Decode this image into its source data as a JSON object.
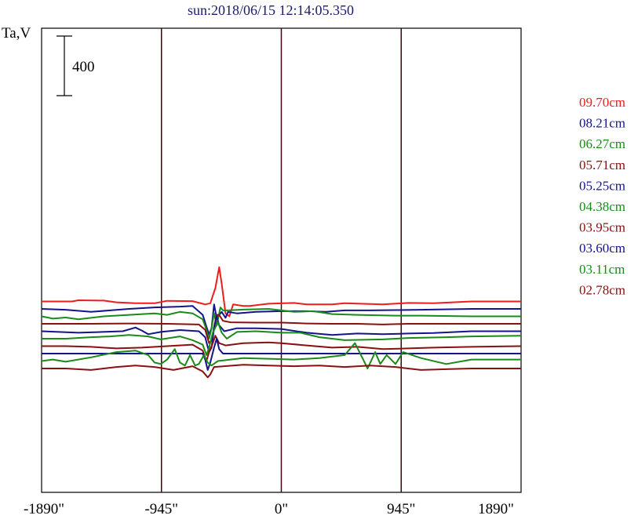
{
  "chart_data": {
    "type": "line",
    "title": "sun:2018/06/15 12:14:05.350",
    "ylabel": "Ta,V",
    "xlabel": "",
    "xlim": [
      -1890,
      1890
    ],
    "x_ticks": [
      {
        "value": -1890,
        "label": "-1890\""
      },
      {
        "value": -945,
        "label": "-945\""
      },
      {
        "value": 0,
        "label": "0\""
      },
      {
        "value": 945,
        "label": "945\""
      },
      {
        "value": 1890,
        "label": "1890\""
      }
    ],
    "vertical_gridlines": [
      -945,
      0,
      945
    ],
    "scale_bar": {
      "value": 400,
      "label": "400"
    },
    "colors": {
      "red": "#ee1c1c",
      "navy": "#14148a",
      "green": "#1a8a1a",
      "maroon": "#8a1010",
      "frame": "#000000",
      "title": "#1a1a6e"
    },
    "series": [
      {
        "name": "09.70cm",
        "color": "#ee1c1c",
        "baseline": 350,
        "points": [
          [
            -1890,
            0
          ],
          [
            -1650,
            0
          ],
          [
            -1600,
            8
          ],
          [
            -1400,
            6
          ],
          [
            -1300,
            -6
          ],
          [
            -1150,
            -12
          ],
          [
            -1000,
            -12
          ],
          [
            -900,
            4
          ],
          [
            -700,
            2
          ],
          [
            -600,
            -20
          ],
          [
            -560,
            -12
          ],
          [
            -520,
            90
          ],
          [
            -490,
            230
          ],
          [
            -470,
            120
          ],
          [
            -440,
            -80
          ],
          [
            -410,
            -100
          ],
          [
            -380,
            -20
          ],
          [
            -300,
            -30
          ],
          [
            -250,
            -30
          ],
          [
            -100,
            -15
          ],
          [
            100,
            -10
          ],
          [
            200,
            -20
          ],
          [
            400,
            -20
          ],
          [
            500,
            -12
          ],
          [
            800,
            -20
          ],
          [
            1000,
            -10
          ],
          [
            1200,
            -12
          ],
          [
            1500,
            0
          ],
          [
            1890,
            0
          ]
        ]
      },
      {
        "name": "08.21cm",
        "color": "#14148a",
        "baseline": 300,
        "points": [
          [
            -1890,
            0
          ],
          [
            -1700,
            -6
          ],
          [
            -1500,
            -20
          ],
          [
            -1350,
            -10
          ],
          [
            -1200,
            0
          ],
          [
            -1000,
            10
          ],
          [
            -800,
            15
          ],
          [
            -700,
            20
          ],
          [
            -620,
            -40
          ],
          [
            -590,
            -120
          ],
          [
            -570,
            -170
          ],
          [
            -550,
            -130
          ],
          [
            -530,
            30
          ],
          [
            -510,
            -60
          ],
          [
            -470,
            -20
          ],
          [
            -440,
            -60
          ],
          [
            -420,
            -20
          ],
          [
            -350,
            -30
          ],
          [
            -200,
            -20
          ],
          [
            0,
            -15
          ],
          [
            200,
            -15
          ],
          [
            350,
            -20
          ],
          [
            500,
            -10
          ],
          [
            700,
            -10
          ],
          [
            900,
            -8
          ],
          [
            1100,
            -6
          ],
          [
            1500,
            0
          ],
          [
            1890,
            0
          ]
        ]
      },
      {
        "name": "06.27cm",
        "color": "#1a8a1a",
        "baseline": 250,
        "points": [
          [
            -1890,
            0
          ],
          [
            -1800,
            -15
          ],
          [
            -1700,
            -8
          ],
          [
            -1600,
            -20
          ],
          [
            -1400,
            0
          ],
          [
            -1200,
            10
          ],
          [
            -1000,
            20
          ],
          [
            -900,
            10
          ],
          [
            -800,
            30
          ],
          [
            -700,
            20
          ],
          [
            -620,
            -20
          ],
          [
            -590,
            -90
          ],
          [
            -570,
            -150
          ],
          [
            -550,
            -80
          ],
          [
            -530,
            20
          ],
          [
            -510,
            -60
          ],
          [
            -480,
            60
          ],
          [
            -460,
            40
          ],
          [
            -420,
            40
          ],
          [
            -300,
            45
          ],
          [
            -100,
            50
          ],
          [
            100,
            30
          ],
          [
            250,
            35
          ],
          [
            400,
            15
          ],
          [
            600,
            10
          ],
          [
            900,
            5
          ],
          [
            1100,
            5
          ],
          [
            1500,
            0
          ],
          [
            1890,
            0
          ]
        ]
      },
      {
        "name": "05.71cm",
        "color": "#8a1010",
        "baseline": 200,
        "points": [
          [
            -1890,
            0
          ],
          [
            -1500,
            0
          ],
          [
            -1200,
            2
          ],
          [
            -900,
            0
          ],
          [
            -650,
            -5
          ],
          [
            -600,
            -40
          ],
          [
            -570,
            -130
          ],
          [
            -550,
            -110
          ],
          [
            -530,
            -20
          ],
          [
            -510,
            60
          ],
          [
            -490,
            60
          ],
          [
            -460,
            20
          ],
          [
            -400,
            10
          ],
          [
            -200,
            8
          ],
          [
            0,
            8
          ],
          [
            200,
            2
          ],
          [
            400,
            0
          ],
          [
            600,
            0
          ],
          [
            800,
            -5
          ],
          [
            1000,
            0
          ],
          [
            1200,
            0
          ],
          [
            1500,
            0
          ],
          [
            1890,
            0
          ]
        ]
      },
      {
        "name": "05.25cm",
        "color": "#14148a",
        "baseline": 150,
        "points": [
          [
            -1890,
            0
          ],
          [
            -1600,
            -10
          ],
          [
            -1450,
            -6
          ],
          [
            -1250,
            0
          ],
          [
            -1150,
            25
          ],
          [
            -1100,
            5
          ],
          [
            -1050,
            -20
          ],
          [
            -950,
            -5
          ],
          [
            -800,
            8
          ],
          [
            -650,
            0
          ],
          [
            -600,
            -40
          ],
          [
            -570,
            -140
          ],
          [
            -550,
            -110
          ],
          [
            -530,
            20
          ],
          [
            -510,
            100
          ],
          [
            -490,
            40
          ],
          [
            -450,
            0
          ],
          [
            -350,
            20
          ],
          [
            -200,
            20
          ],
          [
            0,
            15
          ],
          [
            200,
            -10
          ],
          [
            400,
            -25
          ],
          [
            600,
            -15
          ],
          [
            800,
            -20
          ],
          [
            1000,
            -15
          ],
          [
            1200,
            -12
          ],
          [
            1500,
            0
          ],
          [
            1890,
            0
          ]
        ]
      },
      {
        "name": "04.38cm",
        "color": "#1a8a1a",
        "baseline": 100,
        "points": [
          [
            -1890,
            0
          ],
          [
            -1700,
            0
          ],
          [
            -1500,
            10
          ],
          [
            -1350,
            15
          ],
          [
            -1200,
            25
          ],
          [
            -1050,
            15
          ],
          [
            -950,
            -5
          ],
          [
            -800,
            15
          ],
          [
            -700,
            -10
          ],
          [
            -620,
            -40
          ],
          [
            -590,
            -110
          ],
          [
            -570,
            -60
          ],
          [
            -540,
            40
          ],
          [
            -500,
            110
          ],
          [
            -470,
            40
          ],
          [
            -430,
            0
          ],
          [
            -350,
            45
          ],
          [
            -200,
            50
          ],
          [
            0,
            40
          ],
          [
            150,
            40
          ],
          [
            300,
            10
          ],
          [
            500,
            -10
          ],
          [
            800,
            -5
          ],
          [
            1000,
            5
          ],
          [
            1300,
            10
          ],
          [
            1500,
            15
          ],
          [
            1890,
            20
          ]
        ]
      },
      {
        "name": "03.95cm",
        "color": "#8a1010",
        "baseline": 50,
        "points": [
          [
            -1890,
            0
          ],
          [
            -1700,
            0
          ],
          [
            -1500,
            -5
          ],
          [
            -1300,
            -15
          ],
          [
            -1100,
            -10
          ],
          [
            -900,
            0
          ],
          [
            -700,
            10
          ],
          [
            -620,
            -30
          ],
          [
            -590,
            -100
          ],
          [
            -570,
            -40
          ],
          [
            -540,
            20
          ],
          [
            -520,
            70
          ],
          [
            -490,
            20
          ],
          [
            -440,
            5
          ],
          [
            -300,
            20
          ],
          [
            -100,
            25
          ],
          [
            0,
            20
          ],
          [
            200,
            5
          ],
          [
            400,
            -10
          ],
          [
            600,
            -5
          ],
          [
            800,
            -20
          ],
          [
            1000,
            -15
          ],
          [
            1200,
            -10
          ],
          [
            1500,
            -5
          ],
          [
            1890,
            0
          ]
        ]
      },
      {
        "name": "03.60cm",
        "color": "#14148a",
        "baseline": 0,
        "points": [
          [
            -1890,
            0
          ],
          [
            -1300,
            0
          ],
          [
            -1000,
            0
          ],
          [
            -700,
            0
          ],
          [
            -620,
            0
          ],
          [
            -600,
            -40
          ],
          [
            -580,
            -110
          ],
          [
            -560,
            -60
          ],
          [
            -530,
            40
          ],
          [
            -510,
            100
          ],
          [
            -490,
            30
          ],
          [
            -460,
            0
          ],
          [
            -200,
            0
          ],
          [
            0,
            0
          ],
          [
            200,
            0
          ],
          [
            600,
            0
          ],
          [
            1000,
            0
          ],
          [
            1500,
            0
          ],
          [
            1890,
            0
          ]
        ]
      },
      {
        "name": "03.11cm",
        "color": "#1a8a1a",
        "baseline": -50,
        "points": [
          [
            -1890,
            0
          ],
          [
            -1800,
            10
          ],
          [
            -1700,
            -5
          ],
          [
            -1500,
            25
          ],
          [
            -1300,
            60
          ],
          [
            -1150,
            70
          ],
          [
            -1050,
            40
          ],
          [
            -1000,
            -10
          ],
          [
            -950,
            -20
          ],
          [
            -900,
            10
          ],
          [
            -840,
            80
          ],
          [
            -800,
            -10
          ],
          [
            -760,
            -30
          ],
          [
            -720,
            40
          ],
          [
            -680,
            -30
          ],
          [
            -650,
            -20
          ],
          [
            -610,
            40
          ],
          [
            -580,
            -10
          ],
          [
            -550,
            -30
          ],
          [
            -500,
            0
          ],
          [
            -300,
            20
          ],
          [
            -100,
            15
          ],
          [
            100,
            10
          ],
          [
            300,
            20
          ],
          [
            500,
            40
          ],
          [
            580,
            120
          ],
          [
            640,
            20
          ],
          [
            680,
            -50
          ],
          [
            740,
            60
          ],
          [
            780,
            -20
          ],
          [
            830,
            40
          ],
          [
            900,
            -20
          ],
          [
            960,
            60
          ],
          [
            1100,
            20
          ],
          [
            1300,
            -20
          ],
          [
            1500,
            10
          ],
          [
            1890,
            10
          ]
        ]
      },
      {
        "name": "02.78cm",
        "color": "#8a1010",
        "baseline": -100,
        "points": [
          [
            -1890,
            0
          ],
          [
            -1700,
            0
          ],
          [
            -1500,
            -10
          ],
          [
            -1300,
            10
          ],
          [
            -1150,
            20
          ],
          [
            -1000,
            10
          ],
          [
            -850,
            -10
          ],
          [
            -700,
            15
          ],
          [
            -620,
            -20
          ],
          [
            -580,
            -60
          ],
          [
            -560,
            -40
          ],
          [
            -530,
            10
          ],
          [
            -450,
            15
          ],
          [
            -300,
            25
          ],
          [
            -100,
            20
          ],
          [
            100,
            15
          ],
          [
            300,
            20
          ],
          [
            500,
            10
          ],
          [
            700,
            20
          ],
          [
            900,
            10
          ],
          [
            1100,
            -10
          ],
          [
            1300,
            -5
          ],
          [
            1500,
            0
          ],
          [
            1890,
            0
          ]
        ]
      }
    ]
  }
}
